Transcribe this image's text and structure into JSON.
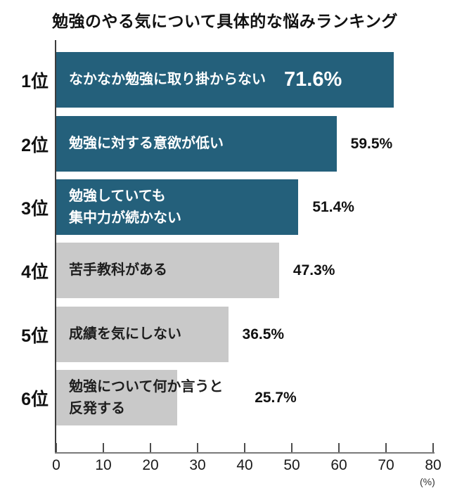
{
  "title": "勉強のやる気について具体的な悩みランキング",
  "colors": {
    "highlight_bar": "#24607b",
    "default_bar": "#c9c9c9",
    "highlight_text": "#ffffff",
    "default_text": "#1e1e1e",
    "axis": "#4d4d4d",
    "background": "#ffffff"
  },
  "chart_data": {
    "type": "bar",
    "orientation": "horizontal",
    "title": "勉強のやる気について具体的な悩みランキング",
    "xlabel": "",
    "ylabel": "",
    "unit_label": "(%)",
    "xlim": [
      0,
      80
    ],
    "xmax": 80,
    "grid": false,
    "ticks": [
      0,
      10,
      20,
      30,
      40,
      50,
      60,
      70,
      80
    ],
    "categories": [
      "なかなか勉強に取り掛からない",
      "勉強に対する意欲が低い",
      "勉強していても集中力が続かない",
      "苦手教科がある",
      "成績を気にしない",
      "勉強について何か言うと反発する"
    ],
    "values": [
      71.6,
      59.5,
      51.4,
      47.3,
      36.5,
      25.7
    ],
    "items": [
      {
        "rank": "1位",
        "label": "なかなか勉強に取り掛からない",
        "value": 71.6,
        "value_label": "71.6%",
        "value_position": "inside",
        "bar_color": "#24607b",
        "label_color": "#ffffff"
      },
      {
        "rank": "2位",
        "label": "勉強に対する意欲が低い",
        "value": 59.5,
        "value_label": "59.5%",
        "value_position": "outside",
        "bar_color": "#24607b",
        "label_color": "#ffffff"
      },
      {
        "rank": "3位",
        "label": "勉強していても\n集中力が続かない",
        "value": 51.4,
        "value_label": "51.4%",
        "value_position": "outside",
        "bar_color": "#24607b",
        "label_color": "#ffffff"
      },
      {
        "rank": "4位",
        "label": "苦手教科がある",
        "value": 47.3,
        "value_label": "47.3%",
        "value_position": "outside",
        "bar_color": "#c9c9c9",
        "label_color": "#1e1e1e"
      },
      {
        "rank": "5位",
        "label": "成績を気にしない",
        "value": 36.5,
        "value_label": "36.5%",
        "value_position": "outside",
        "bar_color": "#c9c9c9",
        "label_color": "#1e1e1e"
      },
      {
        "rank": "6位",
        "label": "勉強について何か言うと\n反発する",
        "value": 25.7,
        "value_label": "25.7%",
        "value_position": "outside",
        "bar_color": "#c9c9c9",
        "label_color": "#1e1e1e"
      }
    ]
  }
}
